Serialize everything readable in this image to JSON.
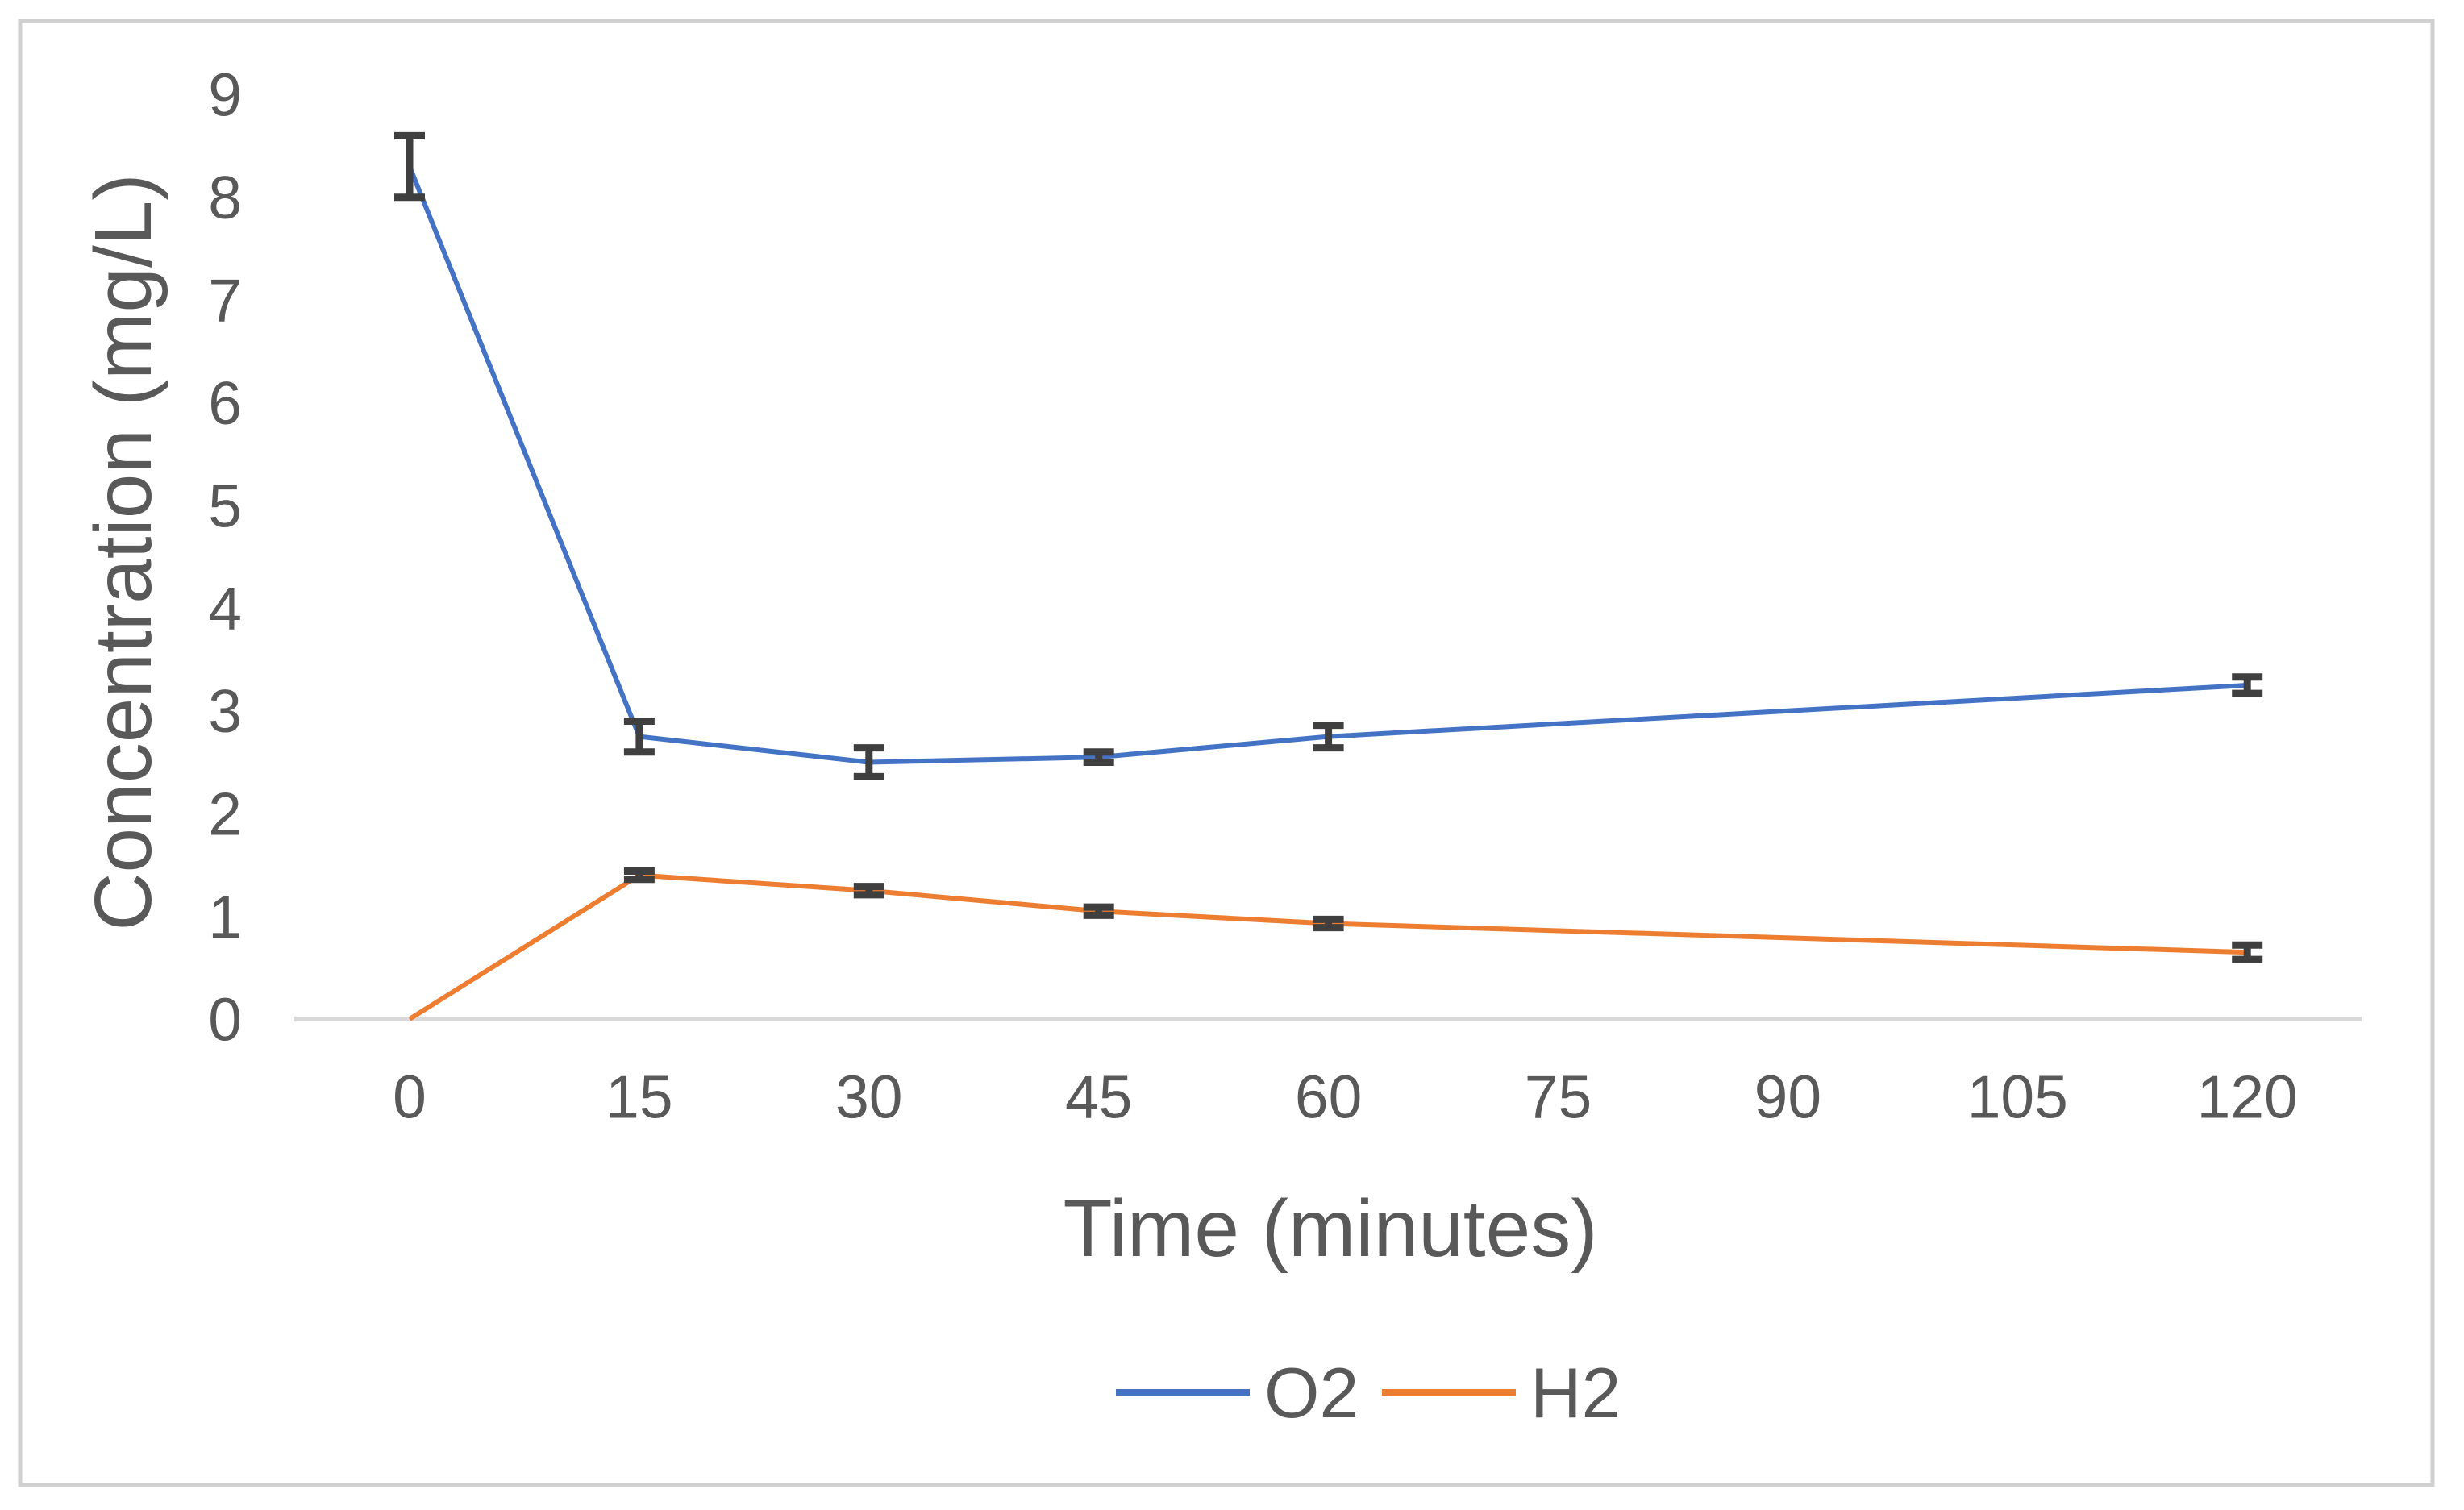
{
  "figure": {
    "background": "#FFFFFF",
    "border_color": "#D0D0D0"
  },
  "chart_data": {
    "type": "line",
    "title": "",
    "xlabel": "Time (minutes)",
    "ylabel": "Concentration (mg/L)",
    "x_categories": [
      "0",
      "15",
      "30",
      "45",
      "60",
      "75",
      "90",
      "105",
      "120"
    ],
    "y_ticks": [
      "0",
      "1",
      "2",
      "3",
      "4",
      "5",
      "6",
      "7",
      "8",
      "9"
    ],
    "ylim": [
      0,
      9
    ],
    "grid": false,
    "legend_position": "bottom-center",
    "axis_line_color": "#D9D9D9",
    "tick_label_color": "#595959",
    "title_color": "#595959",
    "error_bar_color": "#3F3F3F",
    "series": [
      {
        "name": "O2",
        "color": "#4472C4",
        "x": [
          0,
          15,
          30,
          45,
          60,
          120
        ],
        "values": [
          8.3,
          2.75,
          2.5,
          2.55,
          2.75,
          3.25
        ],
        "errors": [
          0.3,
          0.15,
          0.14,
          0.05,
          0.11,
          0.08
        ]
      },
      {
        "name": "H2",
        "color": "#ED7D31",
        "x": [
          0,
          15,
          30,
          45,
          60,
          120
        ],
        "values": [
          0,
          1.4,
          1.25,
          1.05,
          0.93,
          0.65
        ],
        "errors": [
          0,
          0.04,
          0.04,
          0.04,
          0.04,
          0.07
        ]
      }
    ]
  }
}
